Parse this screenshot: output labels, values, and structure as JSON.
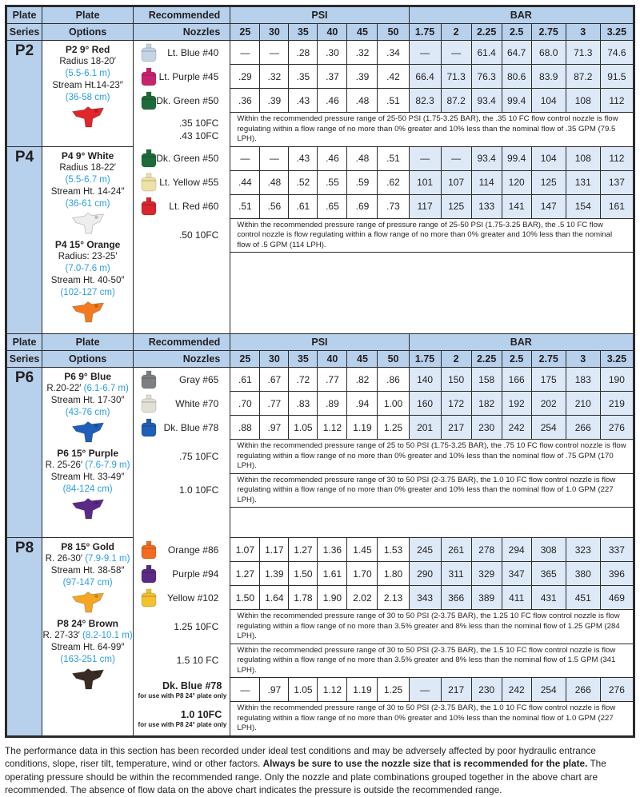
{
  "header": {
    "plate_series": [
      "Plate",
      "Series"
    ],
    "plate_options": [
      "Plate",
      "Options"
    ],
    "nozzles": [
      "Recommended",
      "Nozzles"
    ],
    "psi": "PSI",
    "bar": "BAR",
    "psi_cols": [
      "25",
      "30",
      "35",
      "40",
      "45",
      "50"
    ],
    "bar_cols": [
      "1.75",
      "2",
      "2.25",
      "2.5",
      "2.75",
      "3",
      "3.25"
    ]
  },
  "colors": {
    "header_bg": "#b7d0ec",
    "bar_bg": "#dde9f7",
    "metric_text": "#2a9ee0"
  },
  "sections": [
    {
      "series": "P2",
      "plates": [
        {
          "name": "P2 9° Red",
          "color": "#e0262b",
          "lines": [
            [
              {
                "t": "Radius 18-20′"
              }
            ],
            [
              {
                "t": "(5.5-6.1 m)",
                "m": true
              }
            ],
            [
              {
                "t": "Stream Ht.14-23″"
              }
            ],
            [
              {
                "t": "(36-58 cm)",
                "m": true
              }
            ]
          ]
        }
      ],
      "rows": [
        {
          "nozzle": "Lt. Blue #40",
          "color": "#c5d5e6",
          "psi": [
            "—",
            "—",
            ".28",
            ".30",
            ".32",
            ".34"
          ],
          "bar": [
            "—",
            "—",
            "61.4",
            "64.7",
            "68.0",
            "71.3",
            "74.6"
          ]
        },
        {
          "nozzle": "Lt. Purple #45",
          "color": "#c8246e",
          "psi": [
            ".29",
            ".32",
            ".35",
            ".37",
            ".39",
            ".42"
          ],
          "bar": [
            "66.4",
            "71.3",
            "76.3",
            "80.6",
            "83.9",
            "87.2",
            "91.5"
          ]
        },
        {
          "nozzle": "Dk. Green #50",
          "color": "#1d6b3a",
          "psi": [
            ".36",
            ".39",
            ".43",
            ".46",
            ".48",
            ".51"
          ],
          "bar": [
            "82.3",
            "87.2",
            "93.4",
            "99.4",
            "104",
            "108",
            "112"
          ]
        },
        {
          "nozzle": ".35  10FC\n.43  10FC",
          "note": "Within the recommended pressure range of 25-50 PSI (1.75-3.25 BAR), the .35 10 FC flow control nozzle is flow regulating within a flow range of no more than 0% greater and 10% less than the nominal flow of .35 GPM (79.5 LPH)."
        }
      ]
    },
    {
      "series": "P4",
      "plates": [
        {
          "name": "P4 9°  White",
          "color": "#eeeeee",
          "lines": [
            [
              {
                "t": "Radius 18-22′"
              }
            ],
            [
              {
                "t": "(5.5-6.7 m)",
                "m": true
              }
            ],
            [
              {
                "t": "Stream Ht. 14-24″"
              }
            ],
            [
              {
                "t": "(36-61 cm)",
                "m": true
              }
            ]
          ]
        },
        {
          "name": "P4 15°  Orange",
          "color": "#f47a20",
          "lines": [
            [
              {
                "t": "Radius: 23-25′"
              }
            ],
            [
              {
                "t": "(7.0-7.6 m)",
                "m": true
              }
            ],
            [
              {
                "t": "Stream Ht. 40-50″"
              }
            ],
            [
              {
                "t": "(102-127 cm)",
                "m": true
              }
            ]
          ]
        }
      ],
      "rows": [
        {
          "nozzle": "Dk. Green #50",
          "color": "#1d6b3a",
          "psi": [
            "—",
            "—",
            ".43",
            ".46",
            ".48",
            ".51"
          ],
          "bar": [
            "—",
            "—",
            "93.4",
            "99.4",
            "104",
            "108",
            "112"
          ]
        },
        {
          "nozzle": "Lt. Yellow #55",
          "color": "#efe2a6",
          "psi": [
            ".44",
            ".48",
            ".52",
            ".55",
            ".59",
            ".62"
          ],
          "bar": [
            "101",
            "107",
            "114",
            "120",
            "125",
            "131",
            "137"
          ]
        },
        {
          "nozzle": "Lt. Red #60",
          "color": "#d9252f",
          "psi": [
            ".51",
            ".56",
            ".61",
            ".65",
            ".69",
            ".73"
          ],
          "bar": [
            "117",
            "125",
            "133",
            "141",
            "147",
            "154",
            "161"
          ]
        },
        {
          "nozzle": ".50  10FC",
          "note": "Within the recommended pressure range of  pressure range of 25-50 PSI (1.75-3.25 BAR), the .5 10 FC flow control nozzle is flow regulating within a flow range of no more than 0% greater and 10% less than the nominal flow of .5 GPM (114 LPH)."
        },
        {
          "blank": true
        }
      ]
    },
    {
      "series": "P6",
      "repeat_header": true,
      "plates": [
        {
          "name": "P6 9°  Blue",
          "color": "#1f5fb8",
          "lines": [
            [
              {
                "t": "R.20-22′  "
              },
              {
                "t": "(6.1-6.7 m)",
                "m": true
              }
            ],
            [
              {
                "t": "Stream Ht. 17-30″"
              }
            ],
            [
              {
                "t": "(43-76 cm)",
                "m": true
              }
            ]
          ]
        },
        {
          "name": "P6 15°  Purple",
          "color": "#5b2a86",
          "lines": [
            [
              {
                "t": "R. 25-26′ "
              },
              {
                "t": "(7.6-7.9 m)",
                "m": true
              }
            ],
            [
              {
                "t": "Stream Ht. 33-49″"
              }
            ],
            [
              {
                "t": "(84-124 cm)",
                "m": true
              }
            ]
          ]
        }
      ],
      "rows": [
        {
          "nozzle": "Gray #65",
          "color": "#7d7f82",
          "psi": [
            ".61",
            ".67",
            ".72",
            ".77",
            ".82",
            ".86"
          ],
          "bar": [
            "140",
            "150",
            "158",
            "166",
            "175",
            "183",
            "190"
          ]
        },
        {
          "nozzle": "White #70",
          "color": "#e3e0d6",
          "psi": [
            ".70",
            ".77",
            ".83",
            ".89",
            ".94",
            "1.00"
          ],
          "bar": [
            "160",
            "172",
            "182",
            "192",
            "202",
            "210",
            "219"
          ]
        },
        {
          "nozzle": "Dk. Blue #78",
          "color": "#1f5fb8",
          "psi": [
            ".88",
            ".97",
            "1.05",
            "1.12",
            "1.19",
            "1.25"
          ],
          "bar": [
            "201",
            "217",
            "230",
            "242",
            "254",
            "266",
            "276"
          ]
        },
        {
          "nozzle": ".75  10FC",
          "note": "Within the recommended pressure range of 25 to 50 PSI (1.75-3.25 BAR), the .75 10 FC flow control nozzle is flow regulating within a flow range of no more than 0% greater and 10% less than the nominal flow of .75 GPM (170 LPH)."
        },
        {
          "nozzle": "1.0  10FC",
          "note": "Within the recommended pressure range of 30 to 50 PSI (2-3.75 BAR), the 1.0 10 FC flow control nozzle is flow regulating within  a flow range of no more than 0% greater and 10% less than the nominal flow of 1.0 GPM (227 LPH)."
        },
        {
          "blank": true
        }
      ]
    },
    {
      "series": "P8",
      "plates": [
        {
          "name": "P8 15°  Gold",
          "color": "#f5a623",
          "lines": [
            [
              {
                "t": "R. 26-30′  "
              },
              {
                "t": "(7.9-9.1 m)",
                "m": true
              }
            ],
            [
              {
                "t": "Stream Ht. 38-58″"
              }
            ],
            [
              {
                "t": "(97-147 cm)",
                "m": true
              }
            ]
          ]
        },
        {
          "name": "P8 24°  Brown",
          "color": "#3a2c25",
          "lines": [
            [
              {
                "t": "R. 27-33′  "
              },
              {
                "t": "(8.2-10.1 m)",
                "m": true
              }
            ],
            [
              {
                "t": "Stream Ht. 64-99″"
              }
            ],
            [
              {
                "t": "(163-251 cm)",
                "m": true
              }
            ]
          ]
        }
      ],
      "rows": [
        {
          "nozzle": "Orange #86",
          "color": "#f26b21",
          "psi": [
            "1.07",
            "1.17",
            "1.27",
            "1.36",
            "1.45",
            "1.53"
          ],
          "bar": [
            "245",
            "261",
            "278",
            "294",
            "308",
            "323",
            "337"
          ]
        },
        {
          "nozzle": "Purple #94",
          "color": "#5b2a86",
          "psi": [
            "1.27",
            "1.39",
            "1.50",
            "1.61",
            "1.70",
            "1.80"
          ],
          "bar": [
            "290",
            "311",
            "329",
            "347",
            "365",
            "380",
            "396"
          ]
        },
        {
          "nozzle": "Yellow #102",
          "color": "#f2c12e",
          "psi": [
            "1.50",
            "1.64",
            "1.78",
            "1.90",
            "2.02",
            "2.13"
          ],
          "bar": [
            "343",
            "366",
            "389",
            "411",
            "431",
            "451",
            "469"
          ]
        },
        {
          "nozzle": "1.25  10FC",
          "note": "Within the recommended pressure range of 30 to 50 PSI (2-3.75 BAR), the 1.25 10 FC flow control nozzle is flow regulating within a flow range of no more than 3.5% greater and 8% less than the nominal flow of 1.25 GPM (284 LPH)."
        },
        {
          "nozzle": "1.5  10 FC",
          "note": "Within the recommended pressure range of 30 to 50 PSI (2-3.75 BAR), the 1.5 10 FC flow control nozzle is flow regulating within a flow range of no more than 3.5% greater and 8% less than the nominal flow of 1.5 GPM (341 LPH)."
        },
        {
          "nozzle": "Dk. Blue #78",
          "sub": "for use with P8 24° plate only",
          "big": true,
          "psi": [
            "—",
            ".97",
            "1.05",
            "1.12",
            "1.19",
            "1.25"
          ],
          "bar": [
            "—",
            "217",
            "230",
            "242",
            "254",
            "266",
            "276"
          ]
        },
        {
          "nozzle": "1.0  10FC",
          "sub": "for use with P8 24° plate only",
          "big": true,
          "note": "Within the recommended pressure range of 30 to 50 PSI (2-3.75 BAR), the 1.0 10 FC flow control nozzle is flow regulating within  a flow range of no more than 0% greater and 10% less than the nominal flow of 1.0 GPM (227 LPH)."
        }
      ]
    }
  ],
  "footer": {
    "before": "The performance data in this section has been recorded under ideal test conditions and may be adversely affected by poor hydraulic entrance conditions, slope, riser tilt, temperature, wind or other factors. ",
    "bold": "Always be sure to use the nozzle size that is recommended for the plate.",
    "after": " The operating pressure should be within the recommended range. Only the nozzle and plate combinations grouped together in the above chart are recommended. The absence of flow data on the above chart indicates the pressure is outside the recommended range."
  }
}
